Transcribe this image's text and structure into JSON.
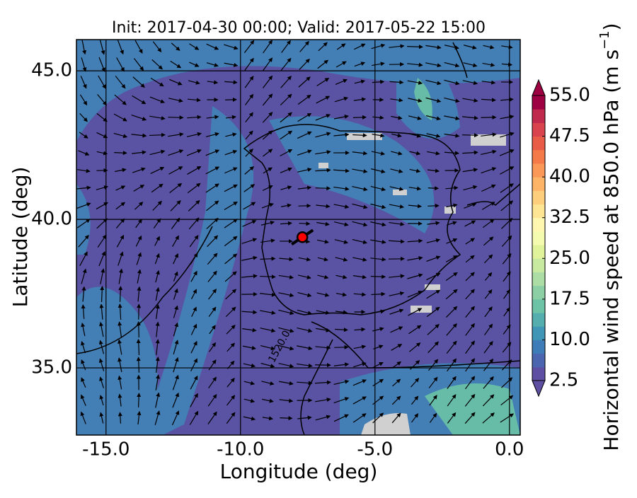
{
  "chart_data": {
    "type": "map",
    "title": "Init: 2017-04-30 00:00; Valid: 2017-05-22 15:00",
    "x_label": "Longitude (deg)",
    "y_label": "Latitude (deg)",
    "xlim": [
      -16.1,
      0.4
    ],
    "xticks": [
      {
        "value": -15,
        "label": "-15.0"
      },
      {
        "value": -10,
        "label": "-10.0"
      },
      {
        "value": -5,
        "label": "-5.0"
      },
      {
        "value": 0,
        "label": "0.0"
      }
    ],
    "ylim": [
      32.74,
      46.05
    ],
    "yticks": [
      {
        "value": 35,
        "label": "35.0"
      },
      {
        "value": 40,
        "label": "40.0"
      },
      {
        "value": 45,
        "label": "45.0"
      }
    ],
    "grid": true,
    "contour_label": "1520.0",
    "station": {
      "lon": -7.7,
      "lat": 39.4,
      "color": "#ff0000"
    },
    "colorbar": {
      "label": "Horizontal wind speed at 850.0 hPa (m s",
      "label_sup": "−1",
      "label_end": ")",
      "lim": [
        2.5,
        55
      ],
      "ticks": [
        2.5,
        {
          "value": 10,
          "label": "10.0"
        },
        17.5,
        {
          "value": 25,
          "label": "25.0"
        },
        32.5,
        {
          "value": 40,
          "label": "40.0"
        },
        47.5,
        {
          "value": 55,
          "label": "55.0"
        }
      ],
      "colors": [
        "#5e4fa2",
        "#4b65af",
        "#3e7cb7",
        "#3f96b7",
        "#54aead",
        "#6dc3a5",
        "#8ccfa4",
        "#abdda4",
        "#c7e9a0",
        "#e1f39a",
        "#f4faae",
        "#fff6b0",
        "#fee593",
        "#fdcf7c",
        "#fdb466",
        "#fa9857",
        "#f57a4a",
        "#e85b47",
        "#d8434d",
        "#bf2a4d",
        "#9e0142"
      ]
    }
  }
}
